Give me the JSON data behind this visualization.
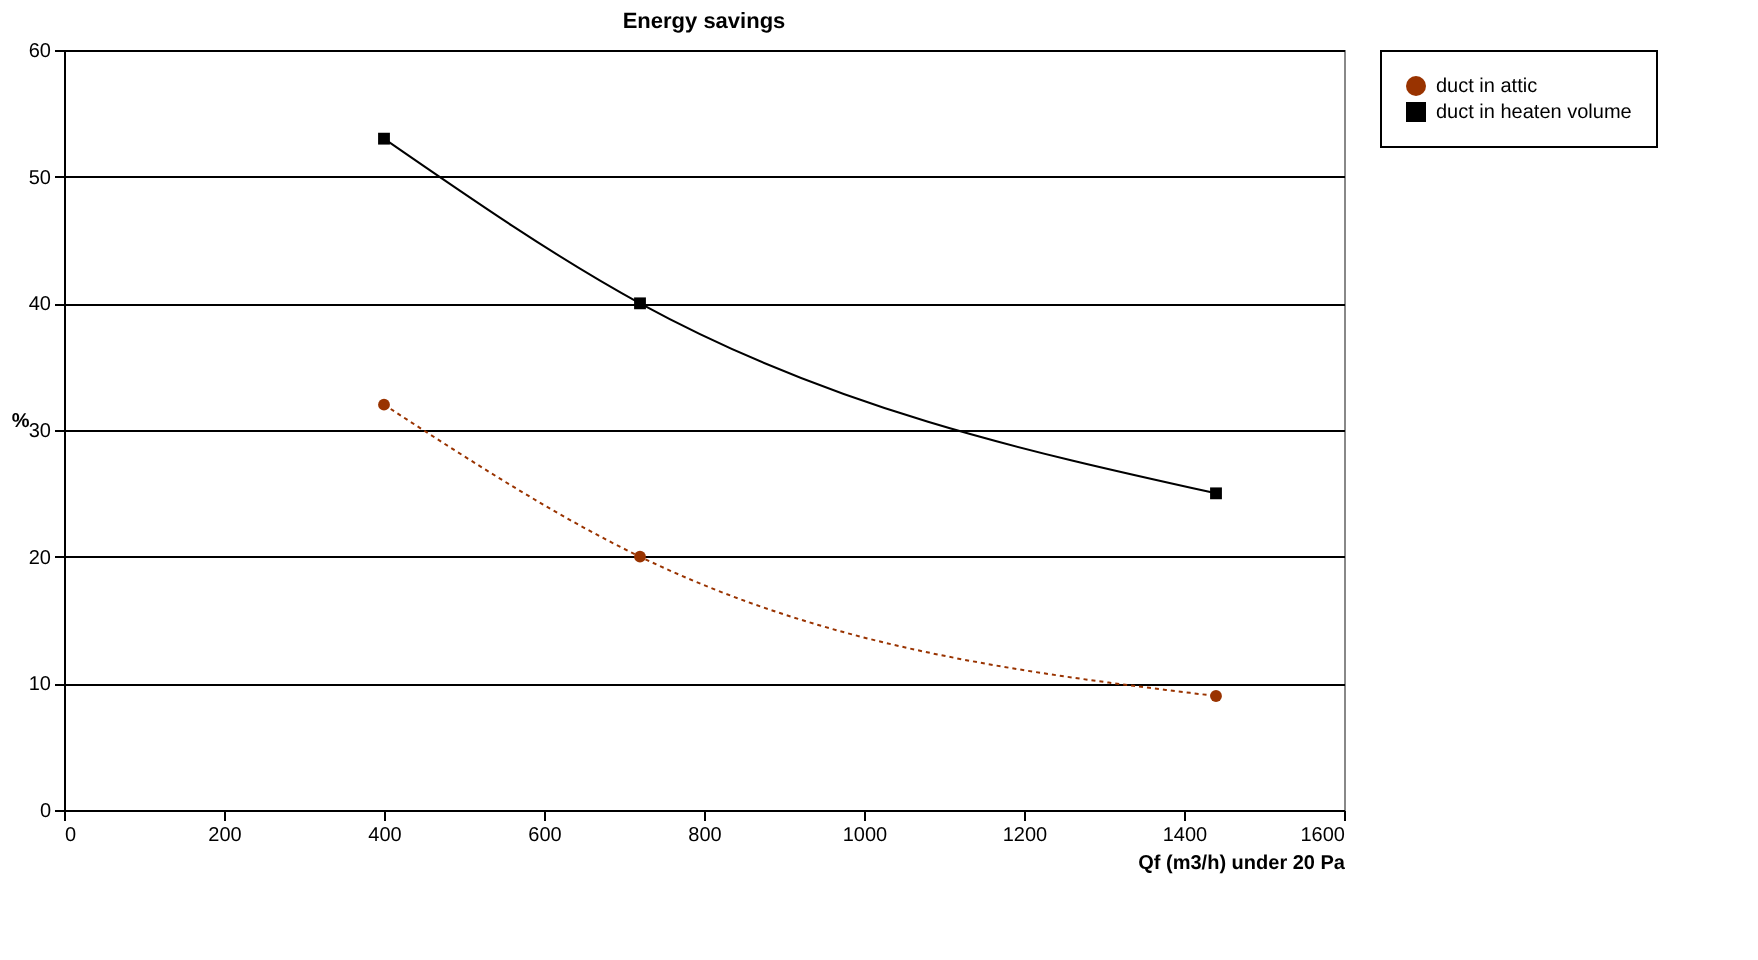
{
  "chart_data": {
    "type": "line",
    "title": "Energy savings",
    "xlabel": "Qf (m3/h) under 20 Pa",
    "ylabel": "%",
    "x": [
      400,
      720,
      1440
    ],
    "series": [
      {
        "name": "duct in attic",
        "color": "#993300",
        "values": [
          32,
          20,
          9
        ],
        "marker": "circle",
        "line_style": "dotted"
      },
      {
        "name": "duct in heaten volume",
        "color": "#000000",
        "values": [
          53,
          40,
          25
        ],
        "marker": "square",
        "line_style": "solid"
      }
    ],
    "xlim": [
      0,
      1600
    ],
    "xticks": [
      0,
      200,
      400,
      600,
      800,
      1000,
      1200,
      1400,
      1600
    ],
    "ylim": [
      0,
      60
    ],
    "yticks": [
      0,
      10,
      20,
      30,
      40,
      50,
      60
    ],
    "grid": "y",
    "legend": "right"
  }
}
